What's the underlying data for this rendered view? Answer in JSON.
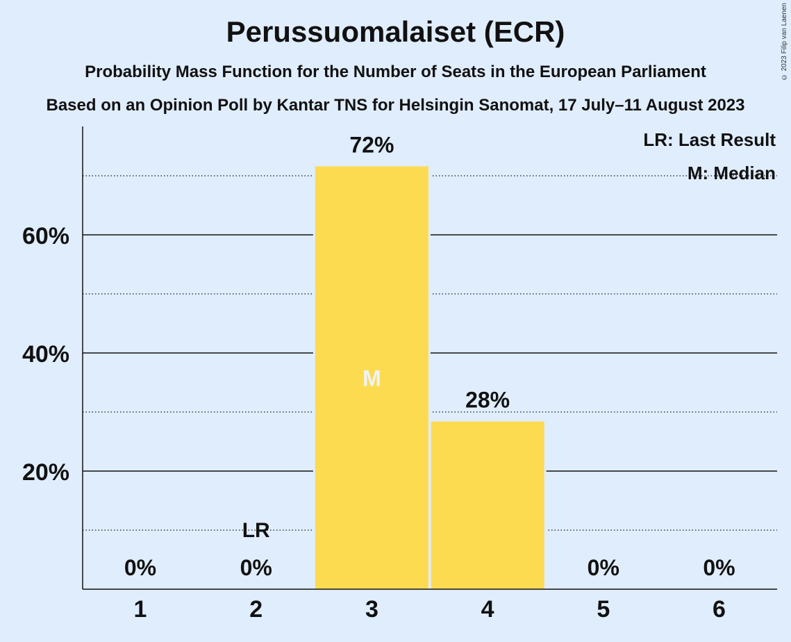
{
  "title": "Perussuomalaiset (ECR)",
  "subtitle": "Probability Mass Function for the Number of Seats in the European Parliament",
  "subtitle2": "Based on an Opinion Poll by Kantar TNS for Helsingin Sanomat, 17 July–11 August 2023",
  "copyright": "© 2023 Filip van Laenen",
  "colors": {
    "background": "#e0edfd",
    "bar": "#fddb50",
    "text": "#111111",
    "median_text": "#eef3fb"
  },
  "chart_data": {
    "type": "bar",
    "categories": [
      "1",
      "2",
      "3",
      "4",
      "5",
      "6"
    ],
    "values": [
      0,
      0,
      71.6,
      28.4,
      0,
      0
    ],
    "value_labels": [
      "0%",
      "0%",
      "72%",
      "28%",
      "0%",
      "0%"
    ],
    "ylim": [
      0,
      78
    ],
    "y_ticks": [
      20,
      40,
      60
    ],
    "y_tick_labels": [
      "20%",
      "40%",
      "60%"
    ],
    "y_minor_ticks": [
      10,
      30,
      50,
      70
    ],
    "last_result_category": "2",
    "last_result_label": "LR",
    "median_category": "3",
    "median_label": "M",
    "legend": [
      "LR: Last Result",
      "M: Median"
    ],
    "legend_position": "top-right"
  }
}
